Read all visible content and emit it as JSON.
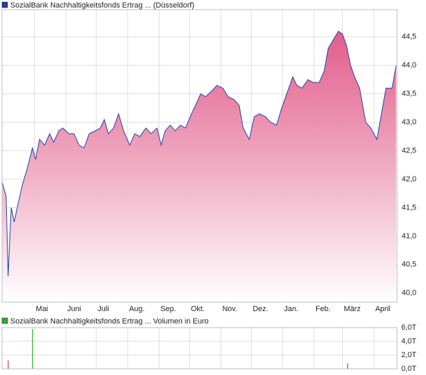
{
  "chart_data": [
    {
      "type": "area",
      "title": "SozialBank Nachhaltigkeitsfonds Ertrag ... (Düsseldorf)",
      "series": [
        {
          "name": "SozialBank Nachhaltigkeitsfonds Ertrag ... (Düsseldorf)",
          "color": "#1f3ea8",
          "x": [
            -32,
            -28,
            -26,
            -23,
            -20,
            -17,
            -12,
            -7,
            -2,
            1,
            5,
            10,
            15,
            19,
            24,
            28,
            34,
            39,
            44,
            49,
            54,
            60,
            65,
            69,
            73,
            78,
            83,
            88,
            94,
            99,
            104,
            110,
            115,
            121,
            125,
            129,
            134,
            139,
            144,
            149,
            155,
            159,
            164,
            169,
            175,
            180,
            186,
            191,
            197,
            202,
            206,
            212,
            217,
            222,
            228,
            233,
            239,
            244,
            249,
            255,
            259,
            264,
            270,
            275,
            281,
            286,
            290,
            295,
            300,
            304,
            308,
            312,
            316,
            321,
            327,
            332,
            338,
            343,
            347,
            353,
            357
          ],
          "values": [
            41.95,
            41.7,
            40.3,
            41.5,
            41.25,
            41.5,
            41.9,
            42.2,
            42.55,
            42.35,
            42.7,
            42.6,
            42.8,
            42.65,
            42.85,
            42.9,
            42.8,
            42.8,
            42.6,
            42.55,
            42.8,
            42.85,
            42.9,
            43.05,
            42.8,
            42.9,
            43.15,
            42.85,
            42.6,
            42.8,
            42.75,
            42.9,
            42.8,
            42.9,
            42.6,
            42.85,
            42.95,
            42.85,
            42.95,
            42.9,
            43.15,
            43.3,
            43.5,
            43.45,
            43.55,
            43.65,
            43.6,
            43.45,
            43.4,
            43.3,
            42.9,
            42.7,
            43.1,
            43.15,
            43.1,
            43.0,
            42.95,
            43.25,
            43.5,
            43.8,
            43.65,
            43.6,
            43.75,
            43.7,
            43.7,
            43.9,
            44.3,
            44.45,
            44.6,
            44.55,
            44.35,
            44.0,
            43.8,
            43.6,
            43.0,
            42.9,
            42.7,
            43.2,
            43.6,
            43.6,
            44.0
          ]
        }
      ],
      "fill_color": "#e05585",
      "xlim": [
        -32,
        358
      ],
      "xticks": [
        {
          "value": 0,
          "label": "Mai"
        },
        {
          "value": 31,
          "label": "Juni"
        },
        {
          "value": 61,
          "label": "Juli"
        },
        {
          "value": 92,
          "label": "Aug."
        },
        {
          "value": 123,
          "label": "Sep."
        },
        {
          "value": 153,
          "label": "Okt."
        },
        {
          "value": 184,
          "label": "Nov."
        },
        {
          "value": 214,
          "label": "Dez."
        },
        {
          "value": 245,
          "label": "Jan."
        },
        {
          "value": 276,
          "label": "Feb."
        },
        {
          "value": 304,
          "label": "März"
        },
        {
          "value": 335,
          "label": "April"
        }
      ],
      "ylim": [
        39.84,
        44.98
      ],
      "yticks": [
        {
          "value": 40.0,
          "label": "40,0"
        },
        {
          "value": 40.5,
          "label": "40,5"
        },
        {
          "value": 41.0,
          "label": "41,0"
        },
        {
          "value": 41.5,
          "label": "41,5"
        },
        {
          "value": 42.0,
          "label": "42,0"
        },
        {
          "value": 42.5,
          "label": "42,5"
        },
        {
          "value": 43.0,
          "label": "43,0"
        },
        {
          "value": 43.5,
          "label": "43,5"
        },
        {
          "value": 44.0,
          "label": "44,0"
        },
        {
          "value": 44.5,
          "label": "44,5"
        }
      ],
      "grid": true
    },
    {
      "type": "bar",
      "title": "SozialBank Nachhaltigkeitsfonds Ertrag ... Volumen in Euro",
      "legend_color": "#33aa33",
      "x": [
        -26,
        -2,
        309
      ],
      "values": [
        1200,
        5800,
        800
      ],
      "colors": [
        "#cc3333",
        "#33aa33",
        "#cc3333"
      ],
      "xlim": [
        -32,
        358
      ],
      "xticks": [
        0,
        31,
        61,
        92,
        123,
        153,
        184,
        214,
        245,
        276,
        304,
        335
      ],
      "ylim": [
        0,
        6000
      ],
      "yticks": [
        {
          "value": 0,
          "label": "0,0T"
        },
        {
          "value": 2000,
          "label": "2,0T"
        },
        {
          "value": 4000,
          "label": "4,0T"
        },
        {
          "value": 6000,
          "label": "6,0T"
        }
      ],
      "grid": true
    }
  ]
}
